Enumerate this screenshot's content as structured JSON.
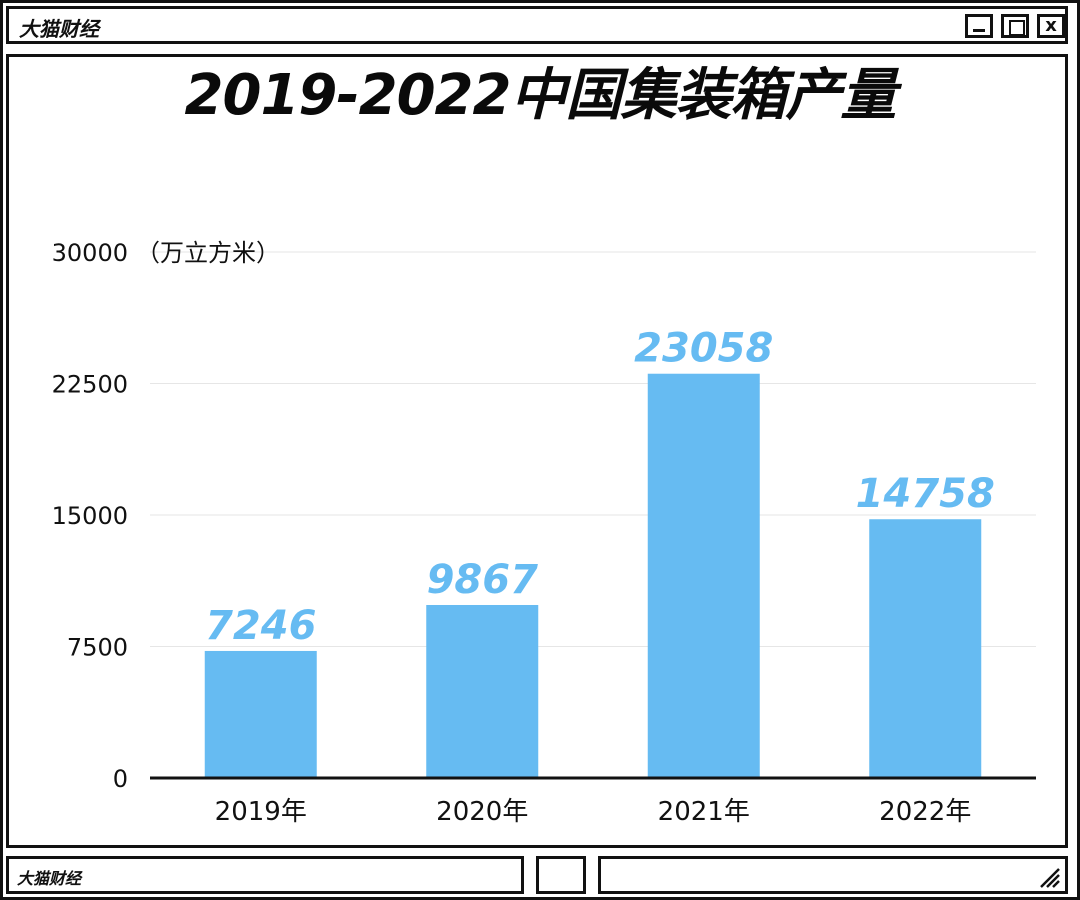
{
  "window": {
    "app_name": "大猫财经",
    "min_label": "",
    "max_label": "",
    "close_label": "x"
  },
  "footer": {
    "app_name": "大猫财经"
  },
  "colors": {
    "bar": "#66bbf2",
    "label": "#66bbf2",
    "axis": "#111111",
    "grid": "#e6e6e6"
  },
  "chart_data": {
    "type": "bar",
    "title": "2019-2022中国集装箱产量",
    "ylabel_unit": "（万立方米）",
    "categories": [
      "2019年",
      "2020年",
      "2021年",
      "2022年"
    ],
    "values": [
      7246,
      9867,
      23058,
      14758
    ],
    "value_labels": [
      "7246",
      "9867",
      "23058",
      "14758"
    ],
    "ylim": [
      0,
      30000
    ],
    "yticks": [
      0,
      7500,
      15000,
      22500,
      30000
    ],
    "ytick_labels": [
      "0",
      "7500",
      "15000",
      "22500",
      "30000"
    ],
    "grid": true
  }
}
